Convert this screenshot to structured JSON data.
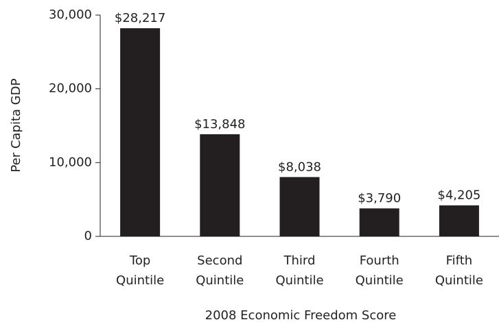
{
  "chart_data": {
    "type": "bar",
    "x_label": "2008 Economic Freedom Score",
    "y_label": "Per Capita GDP",
    "categories": [
      "Top Quintile",
      "Second Quintile",
      "Third Quintile",
      "Fourth Quintile",
      "Fifth Quintile"
    ],
    "values": [
      28217,
      13848,
      8038,
      3790,
      4205
    ],
    "value_labels": [
      "$28,217",
      "$13,848",
      "$8,038",
      "$3,790",
      "$4,205"
    ],
    "color": "#231f20",
    "ylim": [
      0,
      30000
    ],
    "yticks": [
      0,
      {
        "value": 10000,
        "label": "10,000"
      },
      {
        "value": 20000,
        "label": "20,000"
      },
      {
        "value": 30000,
        "label": "30,000"
      }
    ],
    "grid": false
  }
}
